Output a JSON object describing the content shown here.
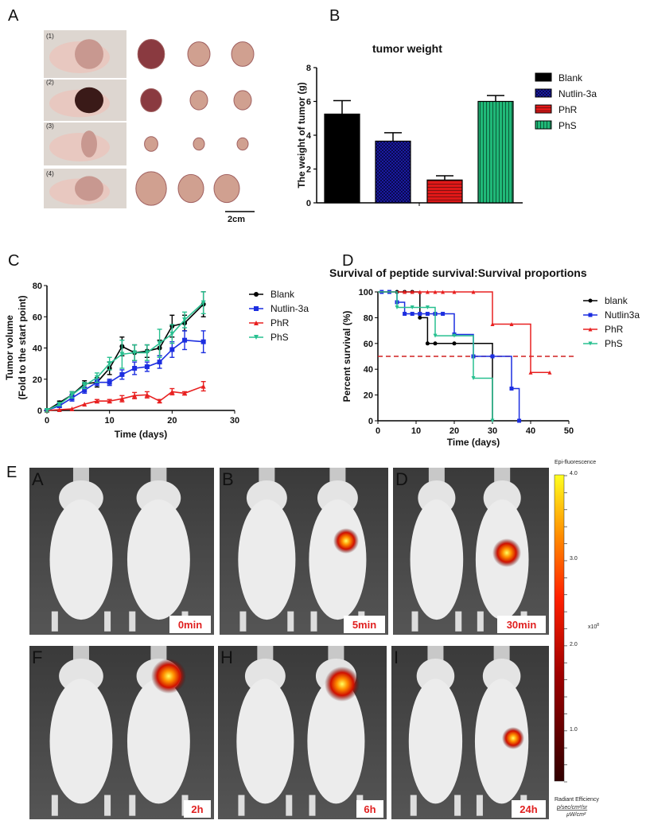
{
  "panel_labels": {
    "a": "A",
    "b": "B",
    "c": "C",
    "d": "D",
    "e": "E"
  },
  "panel_a": {
    "row_labels": [
      "(1)",
      "(2)",
      "(3)",
      "(4)"
    ],
    "scale_bar": "2cm"
  },
  "chart_data": [
    {
      "id": "B",
      "type": "bar",
      "title": "tumor weight",
      "ylabel": "The weight of  tumor (g)",
      "xlabel": "",
      "ylim": [
        0,
        8
      ],
      "yticks": [
        "0",
        "2",
        "4",
        "6",
        "8"
      ],
      "categories": [
        "Blank",
        "Nutlin-3a",
        "PhR",
        "PhS"
      ],
      "values": [
        5.25,
        3.65,
        1.35,
        6.0
      ],
      "errors": [
        0.8,
        0.5,
        0.25,
        0.35
      ],
      "colors": [
        "#000000",
        "#1a1aa0",
        "#e01818",
        "#20b878"
      ],
      "legend": "right"
    },
    {
      "id": "C",
      "type": "line",
      "ylabel": "Tumor volume",
      "ylabel2": "(Fold to the start point)",
      "xlabel": "Time (days)",
      "xlim": [
        0,
        30
      ],
      "ylim": [
        0,
        80
      ],
      "xticks": [
        "0",
        "10",
        "20",
        "30"
      ],
      "yticks": [
        "0",
        "20",
        "40",
        "60",
        "80"
      ],
      "x": [
        0,
        2,
        4,
        6,
        8,
        10,
        12,
        14,
        16,
        18,
        20,
        22,
        25
      ],
      "series": [
        {
          "name": "Blank",
          "color": "#000000",
          "marker": "circle",
          "values": [
            0,
            5,
            10,
            17,
            18,
            27,
            41,
            37,
            38,
            40,
            54,
            56,
            68
          ],
          "errors": [
            1,
            1,
            2,
            2,
            3,
            4,
            6,
            5,
            4,
            5,
            7,
            5,
            8
          ]
        },
        {
          "name": "Nutlin-3a",
          "color": "#1c2ee0",
          "marker": "square",
          "values": [
            0,
            3,
            8,
            13,
            18,
            18,
            23,
            27,
            28,
            31,
            39,
            45,
            44
          ],
          "errors": [
            1,
            1,
            2,
            2,
            2,
            2,
            3,
            4,
            3,
            4,
            5,
            6,
            7
          ]
        },
        {
          "name": "PhR",
          "color": "#e82020",
          "marker": "triangle",
          "values": [
            0,
            0.5,
            1,
            4,
            6,
            6,
            7.5,
            9.5,
            10,
            6,
            12,
            11,
            15.5
          ],
          "errors": [
            0,
            0,
            0,
            0,
            1,
            1,
            2,
            2,
            2,
            1,
            2,
            1,
            3
          ]
        },
        {
          "name": "PhS",
          "color": "#28c090",
          "marker": "triangle-down",
          "values": [
            0,
            4,
            10,
            16,
            21,
            30,
            36,
            37,
            37,
            43,
            49,
            58,
            69
          ],
          "errors": [
            1,
            1,
            2,
            2,
            3,
            4,
            9,
            5,
            5,
            9,
            6,
            5,
            7
          ]
        }
      ],
      "legend": "right"
    },
    {
      "id": "D",
      "type": "line",
      "title": "Survival of peptide survival:Survival proportions",
      "ylabel": "Percent survival (%)",
      "xlabel": "Time (days)",
      "xlim": [
        0,
        50
      ],
      "ylim": [
        0,
        100
      ],
      "xticks": [
        "0",
        "10",
        "20",
        "30",
        "40",
        "50"
      ],
      "yticks": [
        "0",
        "20",
        "40",
        "60",
        "80",
        "100"
      ],
      "reference_line": 50,
      "series": [
        {
          "name": "blank",
          "color": "#000000",
          "steps": [
            [
              0,
              100
            ],
            [
              11,
              80
            ],
            [
              13,
              60
            ],
            [
              30,
              0
            ]
          ],
          "marks": [
            [
              5,
              100
            ],
            [
              7,
              100
            ],
            [
              9,
              100
            ],
            [
              11,
              80
            ],
            [
              13,
              60
            ],
            [
              15,
              60
            ],
            [
              20,
              60
            ],
            [
              30,
              50
            ]
          ]
        },
        {
          "name": "Nutlin3a",
          "color": "#1c2ee0",
          "steps": [
            [
              0,
              100
            ],
            [
              5,
              92
            ],
            [
              7,
              83
            ],
            [
              20,
              67
            ],
            [
              25,
              50
            ],
            [
              35,
              25
            ],
            [
              37,
              0
            ]
          ],
          "marks": [
            [
              1,
              100
            ],
            [
              3,
              100
            ],
            [
              5,
              92
            ],
            [
              7,
              83
            ],
            [
              9,
              83
            ],
            [
              11,
              83
            ],
            [
              13,
              83
            ],
            [
              15,
              83
            ],
            [
              17,
              83
            ],
            [
              20,
              67
            ],
            [
              25,
              50
            ],
            [
              30,
              50
            ],
            [
              35,
              25
            ],
            [
              37,
              0
            ]
          ]
        },
        {
          "name": "PhR",
          "color": "#e82020",
          "steps": [
            [
              0,
              100
            ],
            [
              30,
              75
            ],
            [
              40,
              37.5
            ],
            [
              45,
              37.5
            ]
          ],
          "marks": [
            [
              7,
              100
            ],
            [
              9,
              100
            ],
            [
              11,
              100
            ],
            [
              13,
              100
            ],
            [
              15,
              100
            ],
            [
              17,
              100
            ],
            [
              20,
              100
            ],
            [
              25,
              100
            ],
            [
              30,
              75
            ],
            [
              35,
              75
            ],
            [
              40,
              37.5
            ],
            [
              45,
              37.5
            ]
          ]
        },
        {
          "name": "PhS",
          "color": "#28c090",
          "steps": [
            [
              0,
              100
            ],
            [
              5,
              88
            ],
            [
              15,
              66
            ],
            [
              25,
              33
            ],
            [
              30,
              0
            ]
          ],
          "marks": [
            [
              5,
              88
            ],
            [
              9,
              88
            ],
            [
              13,
              88
            ],
            [
              15,
              66
            ],
            [
              20,
              66
            ],
            [
              25,
              33
            ],
            [
              30,
              0
            ]
          ]
        }
      ],
      "legend": "right"
    }
  ],
  "panel_e": {
    "images": [
      {
        "letter": "A",
        "time": "0min",
        "signal": 0
      },
      {
        "letter": "B",
        "time": "5min",
        "signal": 1
      },
      {
        "letter": "D",
        "time": "30min",
        "signal": 1
      },
      {
        "letter": "F",
        "time": "2h",
        "signal": 1
      },
      {
        "letter": "H",
        "time": "6h",
        "signal": 1
      },
      {
        "letter": "I",
        "time": "24h",
        "signal": 0.6
      }
    ],
    "colorbar": {
      "title": "Epi-fluorescence",
      "ticks": [
        "4.0",
        "3.0",
        "2.0",
        "1.0"
      ],
      "multiplier": "x10",
      "exponent": "8",
      "unit_label": "Radiant Efficiency",
      "unit_num": "p/sec/cm²/sr",
      "unit_den": "µW/cm²"
    }
  }
}
